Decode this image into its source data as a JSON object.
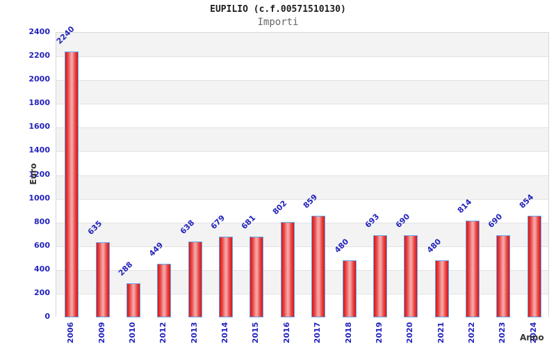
{
  "title": "EUPILIO (c.f.00571510130)",
  "subtitle": "Importi",
  "chart_data": {
    "type": "bar",
    "title": "EUPILIO (c.f.00571510130)",
    "subtitle": "Importi",
    "xlabel": "Anno",
    "ylabel": "Euro",
    "categories": [
      "2006",
      "2009",
      "2010",
      "2012",
      "2013",
      "2014",
      "2015",
      "2016",
      "2017",
      "2018",
      "2019",
      "2020",
      "2021",
      "2022",
      "2023",
      "2024"
    ],
    "values": [
      2240,
      635,
      288,
      449,
      638,
      679,
      681,
      802,
      859,
      480,
      693,
      690,
      480,
      814,
      690,
      854
    ],
    "ylim": [
      0,
      2400
    ],
    "ytick_step": 200,
    "ytick_labels": [
      "0",
      "200",
      "400",
      "600",
      "800",
      "1000",
      "1200",
      "1400",
      "1600",
      "1800",
      "2000",
      "2200",
      "2400"
    ],
    "grid": true,
    "legend": "none",
    "band_colors": [
      "#f3f3f3",
      "#ffffff"
    ],
    "bar_border_color": "#5fa8ef",
    "bar_edge_color": "#d91414",
    "bar_center_color": "#f5a3a3",
    "tick_text_color": "#2323bd",
    "axis_label_color": "#333333",
    "gridline_color": "#e2e2e2"
  }
}
